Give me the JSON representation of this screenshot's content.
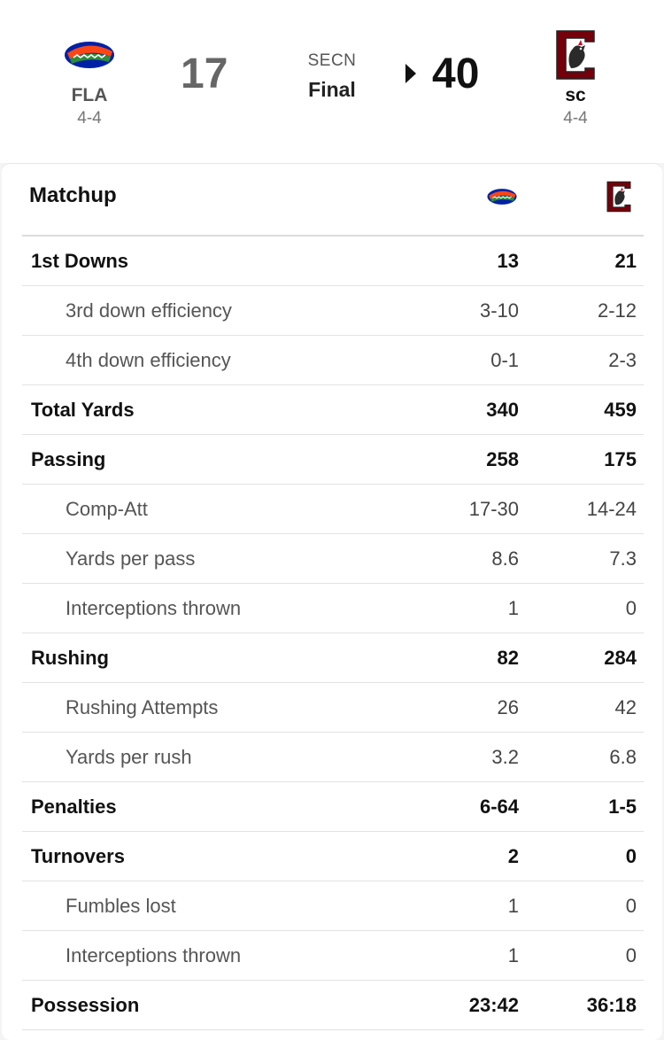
{
  "header": {
    "away": {
      "abbr": "FLA",
      "record": "4-4",
      "score": "17",
      "logo_icon": "florida-gators-logo"
    },
    "home": {
      "abbr": "sc",
      "record": "4-4",
      "score": "40",
      "logo_icon": "south-carolina-gamecocks-logo"
    },
    "network": "SECN",
    "status": "Final"
  },
  "matchup": {
    "title": "Matchup",
    "rows": [
      {
        "label": "1st Downs",
        "away": "13",
        "home": "21",
        "level": "main"
      },
      {
        "label": "3rd down efficiency",
        "away": "3-10",
        "home": "2-12",
        "level": "sub"
      },
      {
        "label": "4th down efficiency",
        "away": "0-1",
        "home": "2-3",
        "level": "sub"
      },
      {
        "label": "Total Yards",
        "away": "340",
        "home": "459",
        "level": "main"
      },
      {
        "label": "Passing",
        "away": "258",
        "home": "175",
        "level": "main"
      },
      {
        "label": "Comp-Att",
        "away": "17-30",
        "home": "14-24",
        "level": "sub"
      },
      {
        "label": "Yards per pass",
        "away": "8.6",
        "home": "7.3",
        "level": "sub"
      },
      {
        "label": "Interceptions thrown",
        "away": "1",
        "home": "0",
        "level": "sub"
      },
      {
        "label": "Rushing",
        "away": "82",
        "home": "284",
        "level": "main"
      },
      {
        "label": "Rushing Attempts",
        "away": "26",
        "home": "42",
        "level": "sub"
      },
      {
        "label": "Yards per rush",
        "away": "3.2",
        "home": "6.8",
        "level": "sub"
      },
      {
        "label": "Penalties",
        "away": "6-64",
        "home": "1-5",
        "level": "main"
      },
      {
        "label": "Turnovers",
        "away": "2",
        "home": "0",
        "level": "main"
      },
      {
        "label": "Fumbles lost",
        "away": "1",
        "home": "0",
        "level": "sub"
      },
      {
        "label": "Interceptions thrown",
        "away": "1",
        "home": "0",
        "level": "sub"
      },
      {
        "label": "Possession",
        "away": "23:42",
        "home": "36:18",
        "level": "main"
      }
    ]
  },
  "colors": {
    "gators_orange": "#fa4616",
    "gators_blue": "#0021a5",
    "gamecocks_garnet": "#73000a",
    "text_primary": "#111111",
    "divider": "#e2e2e2"
  }
}
